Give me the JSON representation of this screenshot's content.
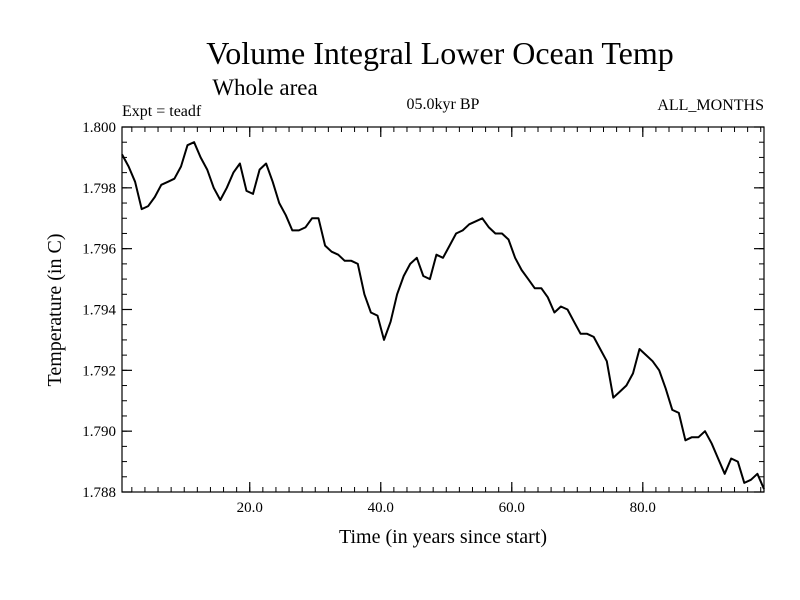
{
  "chart_data": {
    "type": "line",
    "title": "Volume Integral Lower Ocean Temp",
    "subtitle": "Whole area",
    "experiment_label": "Expt = teadf",
    "period_label": "05.0kyr BP",
    "months_label": "ALL_MONTHS",
    "xlabel": "Time (in years since start)",
    "ylabel": "Temperature (in C)",
    "xlim": [
      0.5,
      98.5
    ],
    "ylim": [
      1.788,
      1.8
    ],
    "x_ticks": [
      20,
      40,
      60,
      80
    ],
    "x_tick_labels": [
      "20.0",
      "40.0",
      "60.0",
      "80.0"
    ],
    "y_ticks": [
      1.788,
      1.79,
      1.792,
      1.794,
      1.796,
      1.798,
      1.8
    ],
    "y_tick_labels": [
      "1.788",
      "1.790",
      "1.792",
      "1.794",
      "1.796",
      "1.798",
      "1.800"
    ],
    "legend": "none",
    "grid": false,
    "color": "#000000",
    "series": [
      {
        "name": "Temperature",
        "x": [
          0.5,
          1.5,
          2.5,
          3.5,
          4.5,
          5.5,
          6.5,
          7.5,
          8.5,
          9.5,
          10.5,
          11.5,
          12.5,
          13.5,
          14.5,
          15.5,
          16.5,
          17.5,
          18.5,
          19.5,
          20.5,
          21.5,
          22.5,
          23.5,
          24.5,
          25.5,
          26.5,
          27.5,
          28.5,
          29.5,
          30.5,
          31.5,
          32.5,
          33.5,
          34.5,
          35.5,
          36.5,
          37.5,
          38.5,
          39.5,
          40.5,
          41.5,
          42.5,
          43.5,
          44.5,
          45.5,
          46.5,
          47.5,
          48.5,
          49.5,
          50.5,
          51.5,
          52.5,
          53.5,
          54.5,
          55.5,
          56.5,
          57.5,
          58.5,
          59.5,
          60.5,
          61.5,
          62.5,
          63.5,
          64.5,
          65.5,
          66.5,
          67.5,
          68.5,
          69.5,
          70.5,
          71.5,
          72.5,
          73.5,
          74.5,
          75.5,
          76.5,
          77.5,
          78.5,
          79.5,
          80.5,
          81.5,
          82.5,
          83.5,
          84.5,
          85.5,
          86.5,
          87.5,
          88.5,
          89.5,
          90.5,
          91.5,
          92.5,
          93.5,
          94.5,
          95.5,
          96.5,
          97.5,
          98.5
        ],
        "values": [
          1.7991,
          1.7987,
          1.7982,
          1.7973,
          1.7974,
          1.7977,
          1.7981,
          1.7982,
          1.7983,
          1.7987,
          1.7994,
          1.7995,
          1.799,
          1.7986,
          1.798,
          1.7976,
          1.798,
          1.7985,
          1.7988,
          1.7979,
          1.7978,
          1.7986,
          1.7988,
          1.7982,
          1.7975,
          1.7971,
          1.7966,
          1.7966,
          1.7967,
          1.797,
          1.797,
          1.7961,
          1.7959,
          1.7958,
          1.7956,
          1.7956,
          1.7955,
          1.7945,
          1.7939,
          1.7938,
          1.793,
          1.7936,
          1.7945,
          1.7951,
          1.7955,
          1.7957,
          1.7951,
          1.795,
          1.7958,
          1.7957,
          1.7961,
          1.7965,
          1.7966,
          1.7968,
          1.7969,
          1.797,
          1.7967,
          1.7965,
          1.7965,
          1.7963,
          1.7957,
          1.7953,
          1.795,
          1.7947,
          1.7947,
          1.7944,
          1.7939,
          1.7941,
          1.794,
          1.7936,
          1.7932,
          1.7932,
          1.7931,
          1.7927,
          1.7923,
          1.7911,
          1.7913,
          1.7915,
          1.7919,
          1.7927,
          1.7925,
          1.7923,
          1.792,
          1.7914,
          1.7907,
          1.7906,
          1.7897,
          1.7898,
          1.7898,
          1.79,
          1.7896,
          1.7891,
          1.7886,
          1.7891,
          1.789,
          1.7883,
          1.7884,
          1.7886,
          1.7881
        ]
      }
    ]
  }
}
